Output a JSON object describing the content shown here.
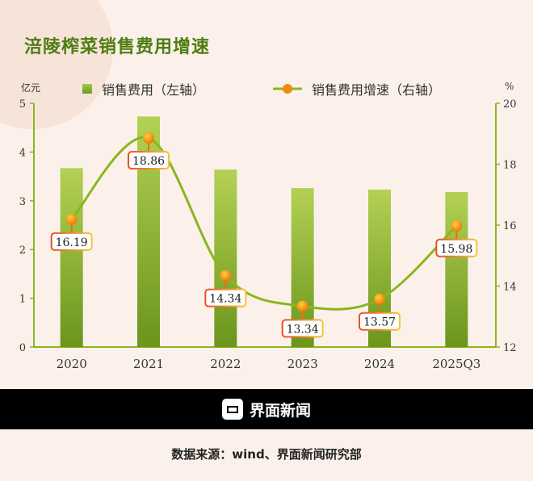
{
  "title": "涪陵榨菜销售费用增速",
  "chart_data": {
    "type": "bar+line",
    "title": "涪陵榨菜销售费用增速",
    "categories": [
      "2020",
      "2021",
      "2022",
      "2023",
      "2024",
      "2025Q3"
    ],
    "series": [
      {
        "name": "销售费用（左轴）",
        "type": "bar",
        "axis": "left",
        "values": [
          3.67,
          4.73,
          3.64,
          3.26,
          3.23,
          3.18
        ],
        "color": "#8fb636"
      },
      {
        "name": "销售费用增速（右轴）",
        "type": "line",
        "axis": "right",
        "values": [
          16.19,
          18.86,
          14.34,
          13.34,
          13.57,
          15.98
        ],
        "labels": [
          "16.19",
          "18.86",
          "14.34",
          "13.34",
          "13.57",
          "15.98"
        ],
        "color": "#8ab61e",
        "marker_color": "#f08a10"
      }
    ],
    "left_axis": {
      "label": "亿元",
      "ylim": [
        0,
        5
      ],
      "ticks": [
        "0",
        "1",
        "2",
        "3",
        "4",
        "5"
      ]
    },
    "right_axis": {
      "label": "%",
      "ylim": [
        12,
        20
      ],
      "ticks": [
        "12",
        "14",
        "16",
        "18",
        "20"
      ]
    },
    "grid": false,
    "legend": "top"
  },
  "footer": {
    "brand": "界面新闻",
    "source": "数据来源：wind、界面新闻研究部"
  }
}
